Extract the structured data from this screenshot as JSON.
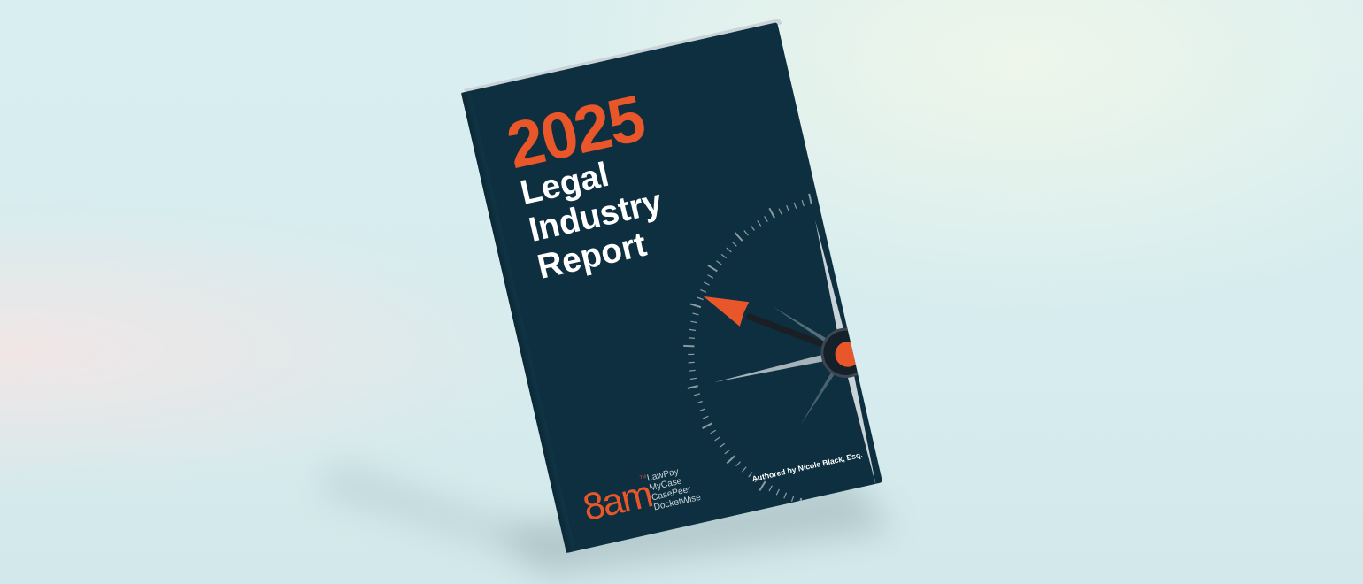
{
  "cover": {
    "year": "2025",
    "title_lines": [
      "Legal",
      "Industry",
      "Report"
    ],
    "author": "Authored by Nicole Black, Esq.",
    "logo": "8am",
    "logo_tm": "TM",
    "brands": [
      "LawPay",
      "MyCase",
      "CasePeer",
      "DocketWise"
    ]
  },
  "colors": {
    "cover": "#0d2f40",
    "accent": "#e8562a",
    "text": "#ffffff",
    "background": "#d7ecee"
  },
  "icons": [
    "compass-icon"
  ]
}
